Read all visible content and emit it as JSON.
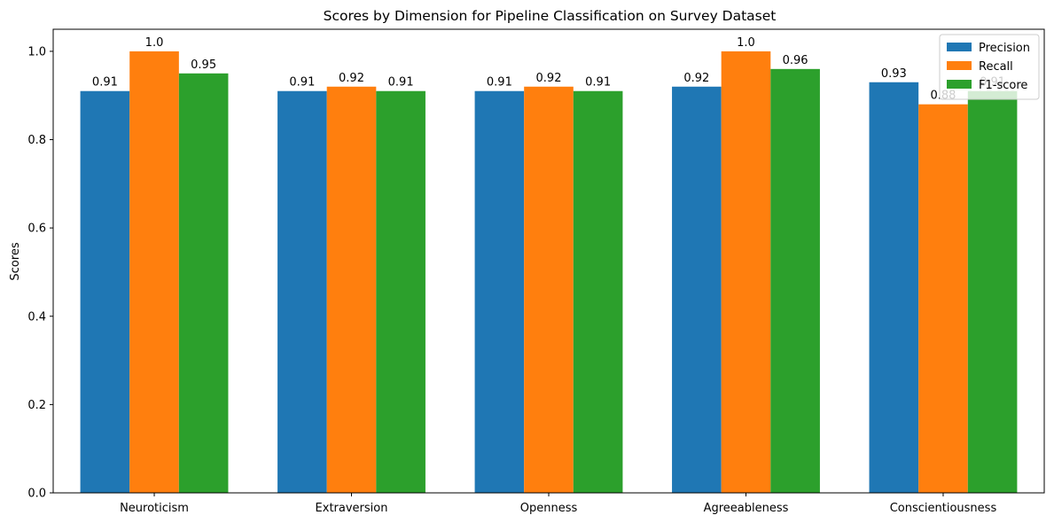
{
  "chart_data": {
    "type": "bar",
    "title": "Scores by Dimension for Pipeline Classification on Survey Dataset",
    "xlabel": "",
    "ylabel": "Scores",
    "ylim": [
      0,
      1.05
    ],
    "yticks": [
      0.0,
      0.2,
      0.4,
      0.6,
      0.8,
      1.0
    ],
    "ytick_labels": [
      "0.0",
      "0.2",
      "0.4",
      "0.6",
      "0.8",
      "1.0"
    ],
    "categories": [
      "Neuroticism",
      "Extraversion",
      "Openness",
      "Agreeableness",
      "Conscientiousness"
    ],
    "series": [
      {
        "name": "Precision",
        "color": "#1f77b4",
        "values": [
          0.91,
          0.91,
          0.91,
          0.92,
          0.93
        ],
        "labels": [
          "0.91",
          "0.91",
          "0.91",
          "0.92",
          "0.93"
        ]
      },
      {
        "name": "Recall",
        "color": "#ff7f0e",
        "values": [
          1.0,
          0.92,
          0.92,
          1.0,
          0.88
        ],
        "labels": [
          "1.0",
          "0.92",
          "0.92",
          "1.0",
          "0.88"
        ]
      },
      {
        "name": "F1-score",
        "color": "#2ca02c",
        "values": [
          0.95,
          0.91,
          0.91,
          0.96,
          0.91
        ],
        "labels": [
          "0.95",
          "0.91",
          "0.91",
          "0.96",
          "0.91"
        ]
      }
    ],
    "legend_position": "top-right",
    "grid": false
  }
}
